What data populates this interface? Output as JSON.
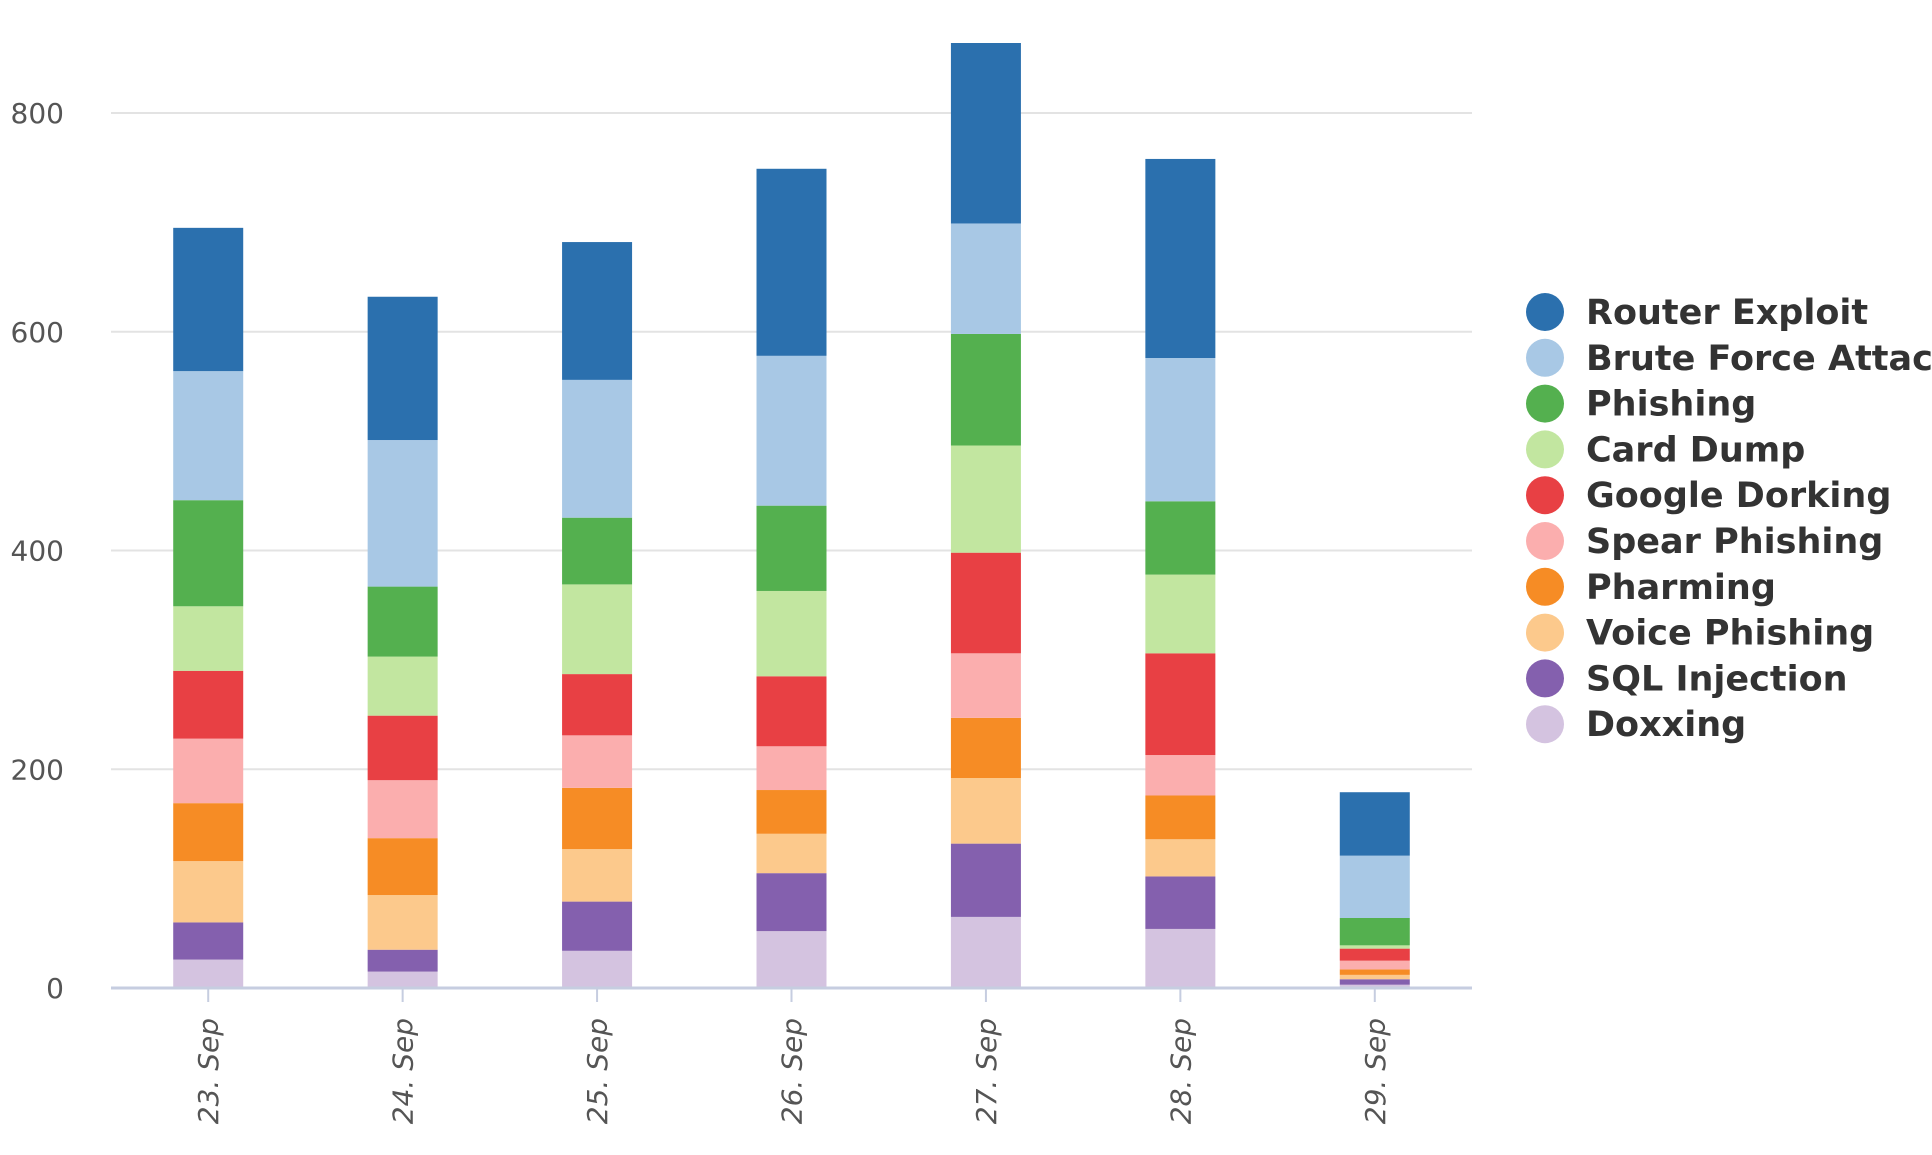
{
  "chart_data": {
    "type": "bar",
    "stacked": true,
    "categories": [
      "23. Sep",
      "24. Sep",
      "25. Sep",
      "26. Sep",
      "27. Sep",
      "28. Sep",
      "29. Sep"
    ],
    "y_ticks": [
      "0",
      "200",
      "400",
      "600",
      "800"
    ],
    "ylim": [
      0,
      870
    ],
    "grid": true,
    "legend_position": "right",
    "series": [
      {
        "name": "Doxxing",
        "color": "#d4c3e0",
        "values": [
          26,
          15,
          34,
          52,
          65,
          54,
          3
        ]
      },
      {
        "name": "SQL Injection",
        "color": "#8460ae",
        "values": [
          34,
          20,
          45,
          53,
          67,
          48,
          5
        ]
      },
      {
        "name": "Voice Phishing",
        "color": "#fcc98c",
        "values": [
          56,
          50,
          48,
          36,
          60,
          34,
          4
        ]
      },
      {
        "name": "Pharming",
        "color": "#f68c25",
        "values": [
          53,
          52,
          56,
          40,
          55,
          40,
          5
        ]
      },
      {
        "name": "Spear Phishing",
        "color": "#fbaeae",
        "values": [
          59,
          53,
          48,
          40,
          59,
          37,
          8
        ]
      },
      {
        "name": "Google Dorking",
        "color": "#e84044",
        "values": [
          62,
          59,
          56,
          64,
          92,
          93,
          11
        ]
      },
      {
        "name": "Card Dump",
        "color": "#c2e6a0",
        "values": [
          59,
          54,
          82,
          78,
          98,
          72,
          3
        ]
      },
      {
        "name": "Phishing",
        "color": "#54b04f",
        "values": [
          97,
          64,
          61,
          78,
          102,
          67,
          25
        ]
      },
      {
        "name": "Brute Force Attack",
        "color": "#a8c8e5",
        "values": [
          118,
          134,
          126,
          137,
          101,
          131,
          57
        ]
      },
      {
        "name": "Router Exploit",
        "color": "#2b70ae",
        "values": [
          131,
          131,
          126,
          171,
          165,
          182,
          58
        ]
      }
    ]
  }
}
